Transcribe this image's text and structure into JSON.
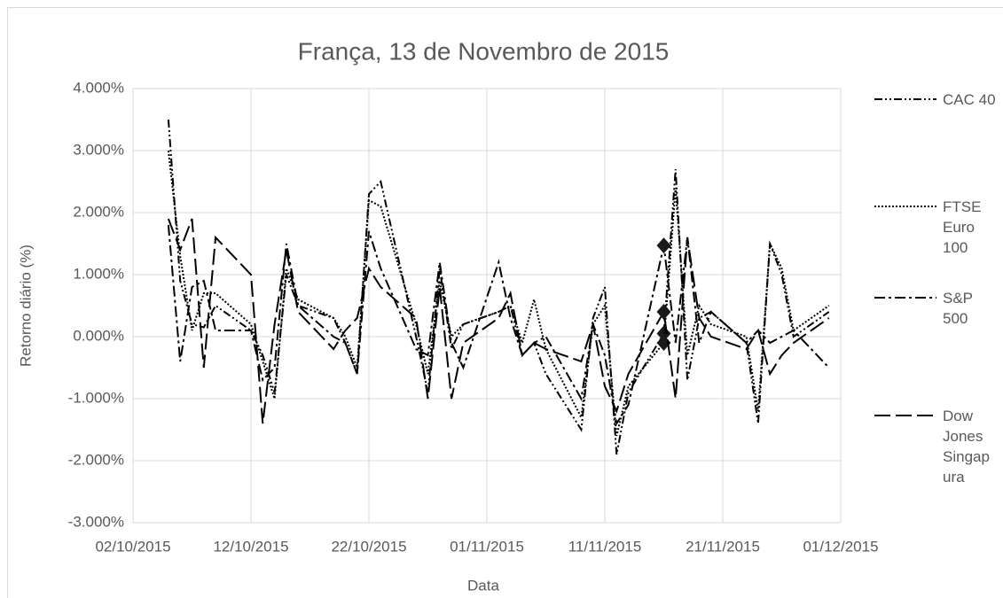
{
  "chart_data": {
    "type": "line",
    "title": "França, 13 de Novembro de 2015",
    "xlabel": "Data",
    "ylabel": "Retorno diário (%)",
    "x": [
      "2015-10-05",
      "2015-10-06",
      "2015-10-07",
      "2015-10-08",
      "2015-10-09",
      "2015-10-12",
      "2015-10-13",
      "2015-10-14",
      "2015-10-15",
      "2015-10-16",
      "2015-10-19",
      "2015-10-20",
      "2015-10-21",
      "2015-10-22",
      "2015-10-23",
      "2015-10-26",
      "2015-10-27",
      "2015-10-28",
      "2015-10-29",
      "2015-10-30",
      "2015-11-02",
      "2015-11-03",
      "2015-11-04",
      "2015-11-05",
      "2015-11-06",
      "2015-11-09",
      "2015-11-10",
      "2015-11-11",
      "2015-11-12",
      "2015-11-13",
      "2015-11-16",
      "2015-11-17",
      "2015-11-18",
      "2015-11-19",
      "2015-11-20",
      "2015-11-23",
      "2015-11-24",
      "2015-11-25",
      "2015-11-26",
      "2015-11-27",
      "2015-11-30"
    ],
    "marker_x": "2015-11-16",
    "series": [
      {
        "name": "CAC 40",
        "color": "#000000",
        "values": [
          3.5,
          0.9,
          0.2,
          0.15,
          0.5,
          0.1,
          -0.3,
          -0.9,
          1.0,
          0.5,
          0.3,
          -0.1,
          -0.6,
          2.3,
          2.5,
          0.0,
          -0.9,
          1.1,
          -0.2,
          0.2,
          0.4,
          0.5,
          -0.3,
          -0.1,
          -0.6,
          -1.5,
          0.3,
          0.8,
          -1.9,
          -0.9,
          0.05,
          2.7,
          -0.7,
          0.3,
          0.4,
          -0.1,
          -1.4,
          1.5,
          1.0,
          0.0,
          0.4
        ]
      },
      {
        "name": "FTSE Euro 100",
        "color": "#000000",
        "values": [
          3.0,
          1.3,
          0.1,
          0.7,
          0.7,
          0.2,
          -0.4,
          -1.0,
          1.1,
          0.6,
          0.3,
          0.0,
          -0.5,
          2.2,
          2.1,
          0.2,
          -0.6,
          0.9,
          0.0,
          0.2,
          0.4,
          0.5,
          -0.1,
          0.6,
          -0.2,
          -1.3,
          0.2,
          0.5,
          -1.6,
          -0.8,
          -0.1,
          2.4,
          -0.3,
          0.5,
          0.2,
          0.0,
          -1.2,
          1.5,
          1.1,
          0.1,
          0.5
        ]
      },
      {
        "name": "S&P 500",
        "color": "#000000",
        "values": [
          1.8,
          -0.4,
          0.8,
          0.9,
          0.1,
          0.1,
          -0.7,
          -0.5,
          1.5,
          0.5,
          0.0,
          -0.1,
          -0.6,
          1.7,
          1.1,
          -0.2,
          -0.3,
          1.2,
          -0.1,
          -0.5,
          1.2,
          0.3,
          -0.3,
          -0.1,
          0.0,
          -1.0,
          0.2,
          -0.3,
          -1.4,
          -1.1,
          1.47,
          -0.1,
          1.6,
          -0.1,
          0.4,
          -0.1,
          0.1,
          -0.1,
          0.0,
          0.1,
          -0.5
        ]
      },
      {
        "name": "Dow Jones Singapura",
        "color": "#000000",
        "values": [
          1.9,
          1.4,
          1.9,
          -0.5,
          1.6,
          1.0,
          -1.4,
          0.2,
          1.4,
          0.4,
          -0.2,
          0.1,
          0.3,
          1.1,
          0.8,
          0.3,
          -1.0,
          0.8,
          -1.0,
          -0.1,
          0.3,
          0.7,
          -0.3,
          -0.1,
          -0.2,
          -0.4,
          0.2,
          -0.8,
          -1.2,
          -0.6,
          0.4,
          -1.0,
          1.6,
          0.3,
          0.0,
          -0.2,
          0.1,
          -0.6,
          -0.3,
          -0.1,
          0.3
        ]
      }
    ],
    "xlim": [
      "2015-10-02",
      "2015-12-01"
    ],
    "xticks": [
      {
        "value": "2015-10-02",
        "label": "02/10/2015"
      },
      {
        "value": "2015-10-12",
        "label": "12/10/2015"
      },
      {
        "value": "2015-10-22",
        "label": "22/10/2015"
      },
      {
        "value": "2015-11-01",
        "label": "01/11/2015"
      },
      {
        "value": "2015-11-11",
        "label": "11/11/2015"
      },
      {
        "value": "2015-11-21",
        "label": "21/11/2015"
      },
      {
        "value": "2015-12-01",
        "label": "01/12/2015"
      }
    ],
    "ylim": [
      -3,
      4
    ],
    "yticks": [
      {
        "value": -3,
        "label": "-3.000%"
      },
      {
        "value": -2,
        "label": "-2.000%"
      },
      {
        "value": -1,
        "label": "-1.000%"
      },
      {
        "value": 0,
        "label": "0.000%"
      },
      {
        "value": 1,
        "label": "1.000%"
      },
      {
        "value": 2,
        "label": "2.000%"
      },
      {
        "value": 3,
        "label": "3.000%"
      },
      {
        "value": 4,
        "label": "4.000%"
      }
    ],
    "grid": true,
    "legend": "right"
  }
}
